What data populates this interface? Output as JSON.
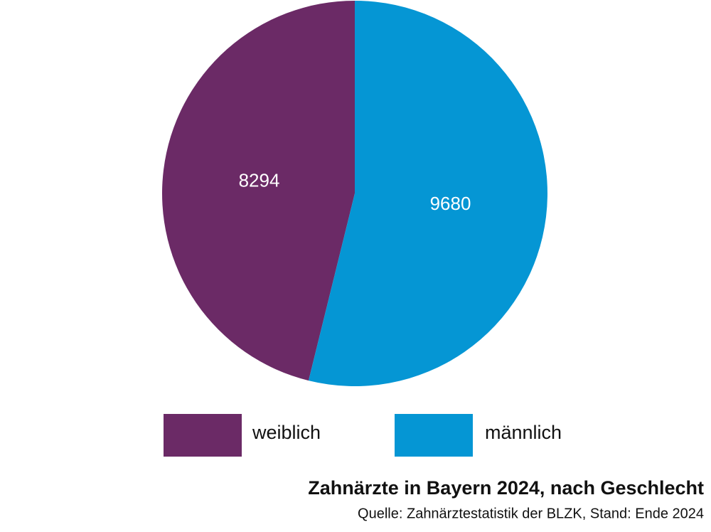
{
  "chart_data": {
    "type": "pie",
    "title": "Zahnärzte in Bayern 2024, nach Geschlecht",
    "subtitle": "Quelle: Zahnärztestatistik der BLZK, Stand: Ende 2024",
    "categories": [
      "weiblich",
      "männlich"
    ],
    "values": [
      8294,
      9680
    ],
    "colors": [
      "#6b2a66",
      "#0596d4"
    ]
  }
}
